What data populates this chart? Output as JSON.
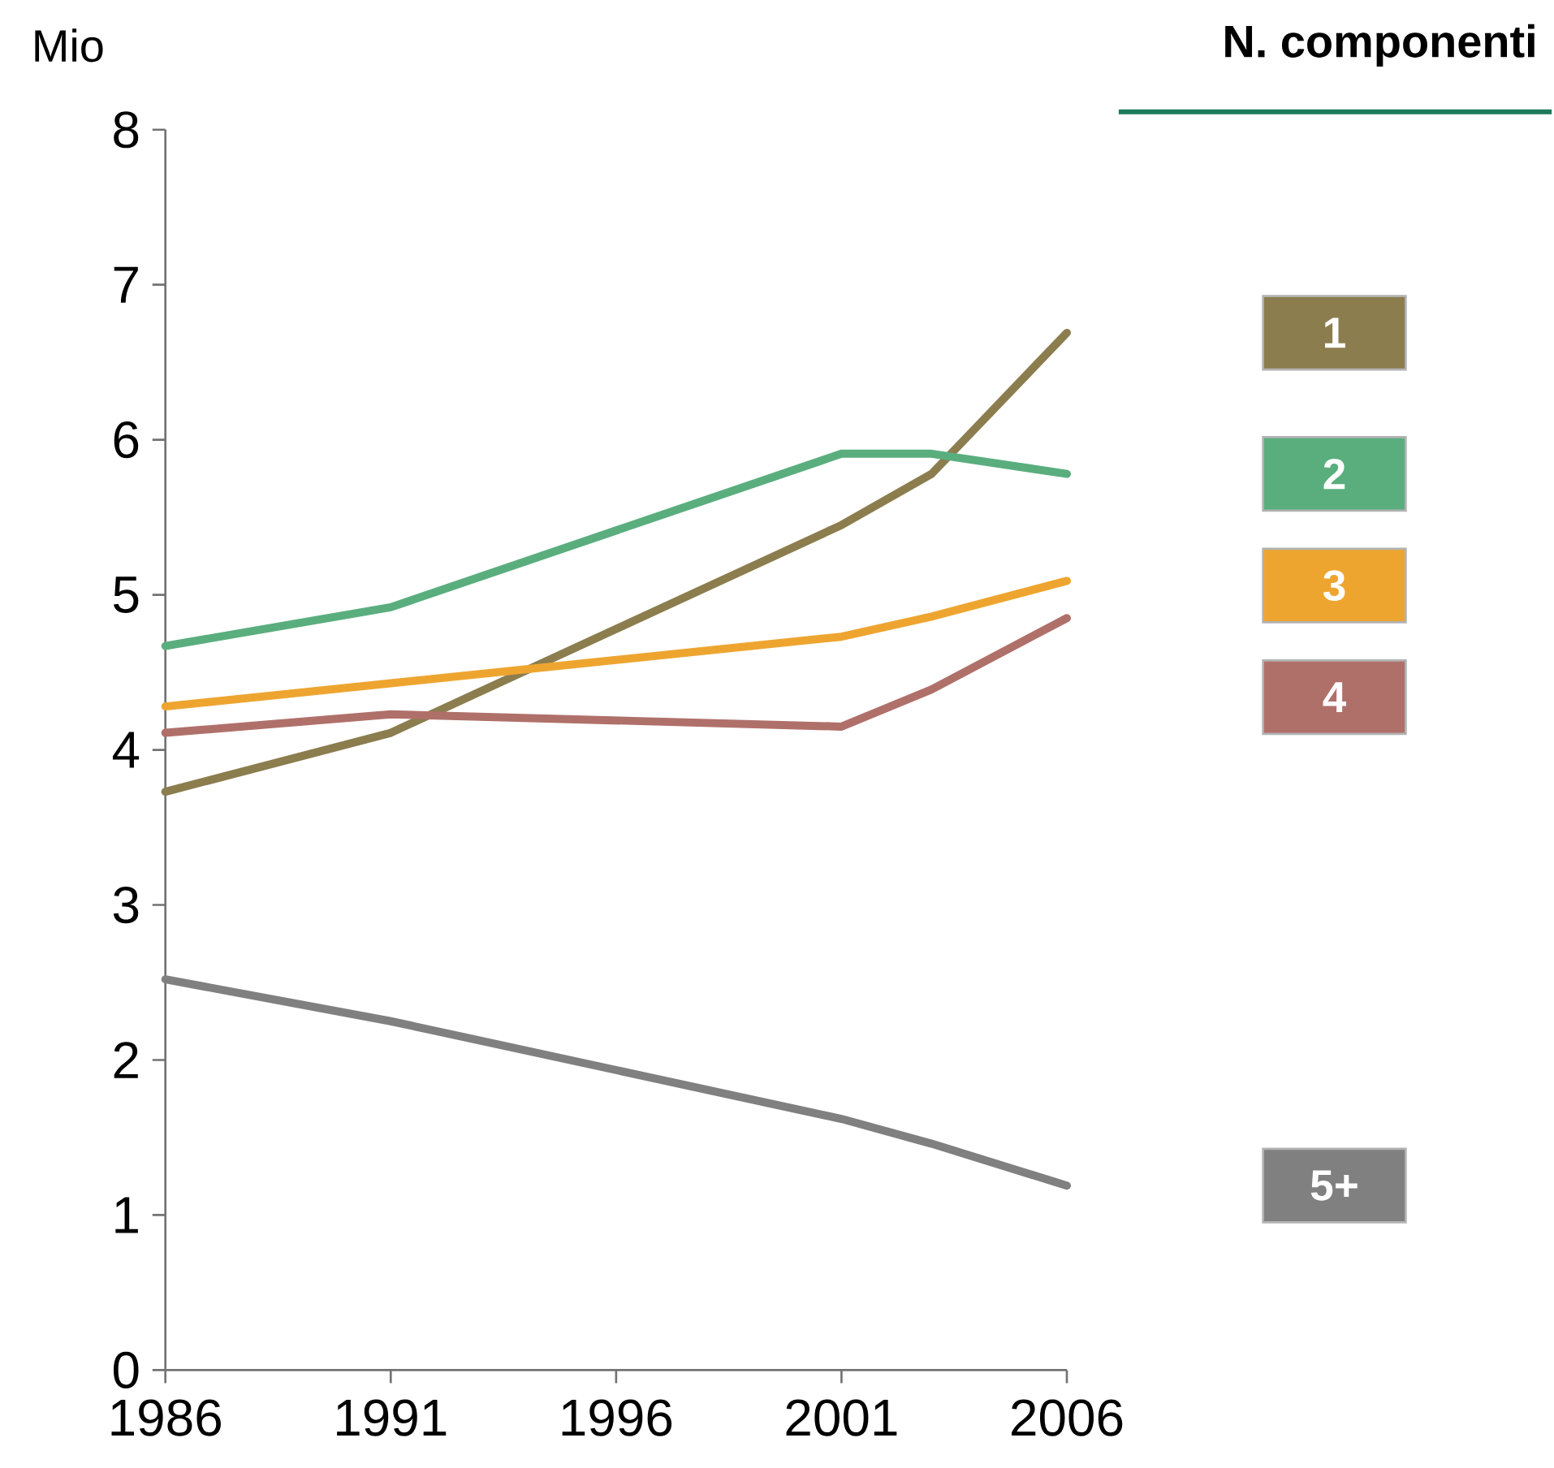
{
  "chart_data": {
    "type": "line",
    "ylabel": "Mio",
    "legend_title": "N. componenti",
    "legend": "right",
    "line_style": "solid",
    "grid": false,
    "x": [
      1986,
      1991,
      2001,
      2003,
      2006
    ],
    "xlim": [
      1986,
      2006
    ],
    "xticks": [
      1986,
      1991,
      1996,
      2001,
      2006
    ],
    "ylim": [
      0,
      8
    ],
    "yticks": [
      0,
      1,
      2,
      3,
      4,
      5,
      6,
      7,
      8
    ],
    "series": [
      {
        "name": "1",
        "color": "#8c7d4e",
        "values": [
          3.73,
          4.11,
          5.45,
          5.78,
          6.69
        ]
      },
      {
        "name": "2",
        "color": "#5aae7e",
        "values": [
          4.67,
          4.92,
          5.91,
          5.91,
          5.78
        ]
      },
      {
        "name": "3",
        "color": "#eea530",
        "values": [
          4.28,
          4.43,
          4.73,
          4.86,
          5.09
        ]
      },
      {
        "name": "4",
        "color": "#b0706a",
        "values": [
          4.11,
          4.23,
          4.15,
          4.39,
          4.85
        ]
      },
      {
        "name": "5+",
        "color": "#808080",
        "values": [
          2.52,
          2.25,
          1.62,
          1.46,
          1.19
        ]
      }
    ]
  }
}
